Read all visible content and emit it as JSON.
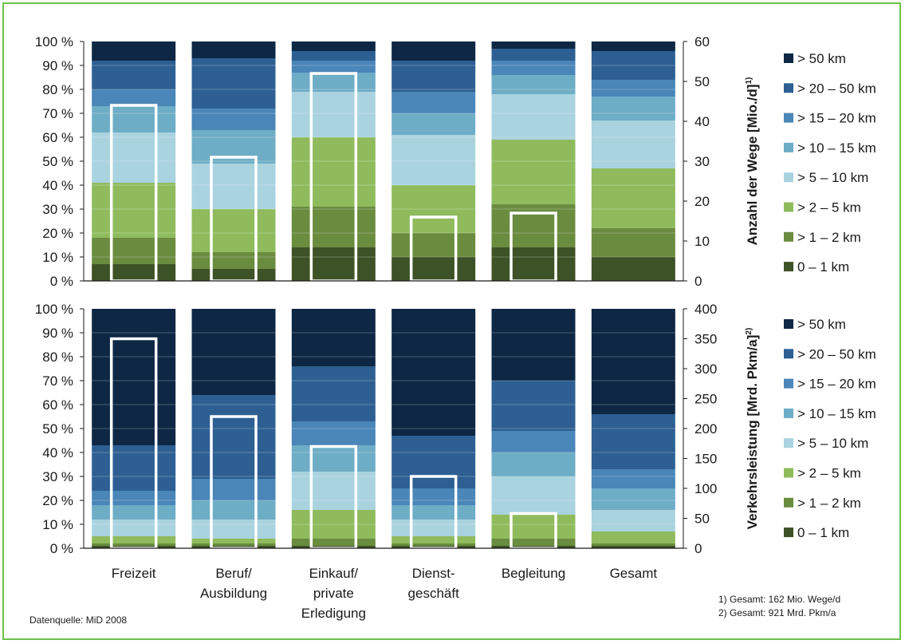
{
  "colors": {
    "segments": [
      "#3d5226",
      "#6a8c3e",
      "#8fbb5d",
      "#a9d3df",
      "#6eadc6",
      "#4a86b8",
      "#2d5f93",
      "#0d2744"
    ],
    "frame": "#6cc24a",
    "total_box": "#ffffff"
  },
  "chart_data": [
    {
      "type": "bar",
      "stacked": true,
      "percent_axis_ticks": [
        "0 %",
        "10 %",
        "20 %",
        "30 %",
        "40 %",
        "50 %",
        "60 %",
        "70 %",
        "80 %",
        "90 %",
        "100 %"
      ],
      "right_axis_title": "Anzahl der Wege [Mio./d]",
      "right_axis_footnote": "1)",
      "right_axis_ticks": [
        "0",
        "10",
        "20",
        "30",
        "40",
        "50",
        "60"
      ],
      "ylim_right": [
        0,
        60
      ],
      "categories": [
        "Freizeit",
        "Beruf/ Ausbildung",
        "Einkauf/ private Erledigung",
        "Dienst- geschäft",
        "Begleitung",
        "Gesamt"
      ],
      "segment_names": [
        "0 – 1 km",
        ">  1 –  2 km",
        ">  2 –  5 km",
        ">  5 – 10 km",
        "> 10 – 15 km",
        "> 15 – 20 km",
        "> 20 – 50 km",
        "> 50 km"
      ],
      "shares_percent": [
        [
          7,
          11,
          23,
          21,
          11,
          7,
          12,
          8
        ],
        [
          5,
          7,
          18,
          19,
          14,
          9,
          21,
          7
        ],
        [
          14,
          17,
          29,
          19,
          8,
          5,
          4,
          4
        ],
        [
          10,
          10,
          20,
          21,
          9,
          9,
          13,
          8
        ],
        [
          14,
          18,
          27,
          19,
          8,
          6,
          5,
          3
        ],
        [
          10,
          12,
          25,
          20,
          10,
          7,
          12,
          4
        ]
      ],
      "totals": [
        44,
        31,
        52,
        16,
        17,
        null
      ]
    },
    {
      "type": "bar",
      "stacked": true,
      "percent_axis_ticks": [
        "0 %",
        "10 %",
        "20 %",
        "30 %",
        "40 %",
        "50 %",
        "60 %",
        "70 %",
        "80 %",
        "90 %",
        "100 %"
      ],
      "right_axis_title": "Verkehrsleistung [Mrd. Pkm/a]",
      "right_axis_footnote": "2)",
      "right_axis_ticks": [
        "0",
        "50",
        "100",
        "150",
        "200",
        "250",
        "300",
        "350",
        "400"
      ],
      "ylim_right": [
        0,
        400
      ],
      "categories": [
        "Freizeit",
        "Beruf/ Ausbildung",
        "Einkauf/ private Erledigung",
        "Dienst- geschäft",
        "Begleitung",
        "Gesamt"
      ],
      "segment_names": [
        "0 – 1 km",
        ">  1 –  2 km",
        ">  2 –  5 km",
        ">  5 – 10 km",
        "> 10 – 15 km",
        "> 15 – 20 km",
        "> 20 – 50 km",
        "> 50 km"
      ],
      "shares_percent": [
        [
          1,
          1,
          3,
          7,
          6,
          6,
          19,
          57
        ],
        [
          1,
          1,
          2,
          8,
          8,
          9,
          35,
          36
        ],
        [
          1,
          3,
          12,
          16,
          11,
          10,
          23,
          24
        ],
        [
          1,
          1,
          3,
          7,
          6,
          7,
          22,
          53
        ],
        [
          1,
          3,
          10,
          16,
          10,
          9,
          21,
          30
        ],
        [
          1,
          1,
          5,
          9,
          9,
          8,
          23,
          44
        ]
      ],
      "totals": [
        350,
        220,
        170,
        120,
        58,
        null
      ]
    }
  ],
  "legend_top": [
    "> 50 km",
    "> 20 – 50 km",
    "> 15 – 20 km",
    "> 10 – 15 km",
    ">  5 – 10 km",
    ">  2 –  5 km",
    ">  1 –  2 km",
    "0 – 1 km"
  ],
  "legend_bottom": [
    "> 50 km",
    "> 20 – 50 km",
    "> 15 – 20 km",
    "> 10 – 15 km",
    ">  5 – 10 km",
    ">  2 –  5 km",
    ">  1 –  2 km",
    "0 – 1 km"
  ],
  "category_labels": [
    [
      "Freizeit"
    ],
    [
      "Beruf/",
      "Ausbildung"
    ],
    [
      "Einkauf/",
      "private",
      "Erledigung"
    ],
    [
      "Dienst-",
      "geschäft"
    ],
    [
      "Begleitung"
    ],
    [
      "Gesamt"
    ]
  ],
  "source": "Datenquelle: MiD 2008",
  "footnotes": [
    "1) Gesamt: 162 Mio. Wege/d",
    "2) Gesamt: 921 Mrd. Pkm/a"
  ]
}
